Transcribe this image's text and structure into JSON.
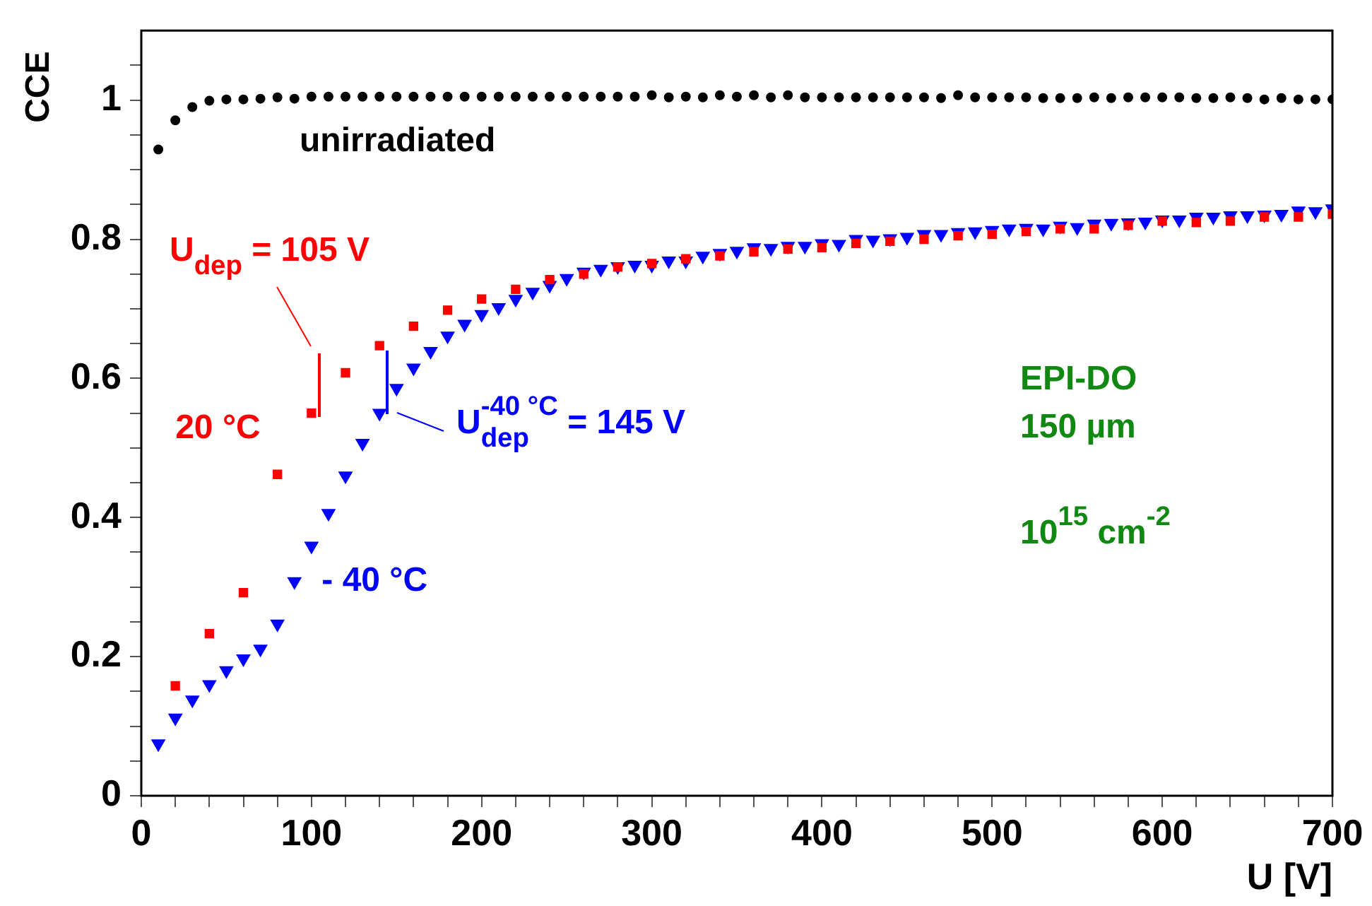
{
  "chart_data": {
    "type": "scatter",
    "xlabel": "U [V]",
    "ylabel": "CCE",
    "xlim": [
      0,
      700
    ],
    "ylim": [
      0,
      1.1
    ],
    "xticks": [
      0,
      {
        "value": 20,
        "label": null
      },
      {
        "value": 40,
        "label": null
      },
      {
        "value": 60,
        "label": null
      },
      {
        "value": 80,
        "label": null
      },
      100,
      {
        "value": 120,
        "label": null
      },
      {
        "value": 140,
        "label": null
      },
      {
        "value": 160,
        "label": null
      },
      {
        "value": 180,
        "label": null
      },
      200,
      {
        "value": 220,
        "label": null
      },
      {
        "value": 240,
        "label": null
      },
      {
        "value": 260,
        "label": null
      },
      {
        "value": 280,
        "label": null
      },
      300,
      {
        "value": 320,
        "label": null
      },
      {
        "value": 340,
        "label": null
      },
      {
        "value": 360,
        "label": null
      },
      {
        "value": 380,
        "label": null
      },
      400,
      {
        "value": 420,
        "label": null
      },
      {
        "value": 440,
        "label": null
      },
      {
        "value": 460,
        "label": null
      },
      {
        "value": 480,
        "label": null
      },
      500,
      {
        "value": 520,
        "label": null
      },
      {
        "value": 540,
        "label": null
      },
      {
        "value": 560,
        "label": null
      },
      {
        "value": 580,
        "label": null
      },
      600,
      {
        "value": 620,
        "label": null
      },
      {
        "value": 640,
        "label": null
      },
      {
        "value": 660,
        "label": null
      },
      {
        "value": 680,
        "label": null
      },
      700
    ],
    "yticks": [
      0,
      {
        "value": 0.05,
        "label": null
      },
      {
        "value": 0.1,
        "label": null
      },
      {
        "value": 0.15,
        "label": null
      },
      0.2,
      {
        "value": 0.25,
        "label": null
      },
      {
        "value": 0.3,
        "label": null
      },
      {
        "value": 0.35,
        "label": null
      },
      0.4,
      {
        "value": 0.45,
        "label": null
      },
      {
        "value": 0.5,
        "label": null
      },
      {
        "value": 0.55,
        "label": null
      },
      0.6,
      {
        "value": 0.65,
        "label": null
      },
      {
        "value": 0.7,
        "label": null
      },
      {
        "value": 0.75,
        "label": null
      },
      0.8,
      {
        "value": 0.85,
        "label": null
      },
      {
        "value": 0.9,
        "label": null
      },
      {
        "value": 0.95,
        "label": null
      },
      1,
      {
        "value": 1.05,
        "label": null
      }
    ],
    "grid": false,
    "legend": false,
    "series": [
      {
        "name": "20 °C",
        "color": "#ff0000",
        "marker": "square",
        "x": [
          20,
          40,
          60,
          80,
          100,
          120,
          140,
          160,
          180,
          200,
          220,
          240,
          260,
          280,
          300,
          320,
          340,
          360,
          380,
          400,
          420,
          440,
          460,
          480,
          500,
          520,
          540,
          560,
          580,
          600,
          620,
          640,
          660,
          680,
          700
        ],
        "values": [
          0.158,
          0.233,
          0.292,
          0.462,
          0.55,
          0.608,
          0.647,
          0.675,
          0.698,
          0.714,
          0.728,
          0.742,
          0.75,
          0.76,
          0.765,
          0.772,
          0.776,
          0.782,
          0.786,
          0.788,
          0.794,
          0.797,
          0.8,
          0.805,
          0.807,
          0.811,
          0.815,
          0.815,
          0.82,
          0.826,
          0.824,
          0.826,
          0.832,
          0.832,
          0.836
        ]
      },
      {
        "name": "- 40 °C",
        "color": "#0000ff",
        "marker": "triangle",
        "x": [
          10,
          20,
          30,
          40,
          50,
          60,
          70,
          80,
          90,
          100,
          110,
          120,
          130,
          140,
          150,
          160,
          170,
          180,
          190,
          200,
          210,
          220,
          230,
          240,
          250,
          260,
          270,
          280,
          290,
          300,
          310,
          320,
          330,
          340,
          350,
          360,
          370,
          380,
          390,
          400,
          410,
          420,
          430,
          440,
          450,
          460,
          470,
          480,
          490,
          500,
          510,
          520,
          530,
          540,
          550,
          560,
          570,
          580,
          590,
          600,
          610,
          620,
          630,
          640,
          650,
          660,
          670,
          680,
          690,
          700
        ],
        "values": [
          0.075,
          0.112,
          0.138,
          0.16,
          0.18,
          0.197,
          0.211,
          0.247,
          0.308,
          0.359,
          0.406,
          0.46,
          0.507,
          0.55,
          0.586,
          0.615,
          0.639,
          0.661,
          0.678,
          0.692,
          0.702,
          0.714,
          0.724,
          0.734,
          0.744,
          0.753,
          0.757,
          0.761,
          0.763,
          0.763,
          0.769,
          0.769,
          0.776,
          0.78,
          0.783,
          0.788,
          0.787,
          0.79,
          0.79,
          0.794,
          0.793,
          0.8,
          0.799,
          0.801,
          0.803,
          0.807,
          0.807,
          0.81,
          0.811,
          0.813,
          0.815,
          0.816,
          0.815,
          0.819,
          0.817,
          0.822,
          0.823,
          0.824,
          0.825,
          0.828,
          0.828,
          0.832,
          0.832,
          0.834,
          0.834,
          0.835,
          0.836,
          0.841,
          0.84,
          0.844
        ]
      },
      {
        "name": "unirradiated",
        "color": "#000000",
        "marker": "circle",
        "x": [
          10,
          20,
          30,
          40,
          50,
          60,
          70,
          80,
          90,
          100,
          110,
          120,
          130,
          140,
          150,
          160,
          170,
          180,
          190,
          200,
          210,
          220,
          230,
          240,
          250,
          260,
          270,
          280,
          290,
          300,
          310,
          320,
          330,
          340,
          350,
          360,
          370,
          380,
          390,
          400,
          410,
          420,
          430,
          440,
          450,
          460,
          470,
          480,
          490,
          500,
          510,
          520,
          530,
          540,
          550,
          560,
          570,
          580,
          590,
          600,
          610,
          620,
          630,
          640,
          650,
          660,
          670,
          680,
          690,
          700
        ],
        "values": [
          0.929,
          0.971,
          0.99,
          0.999,
          1.001,
          1.001,
          1.002,
          1.004,
          1.002,
          1.005,
          1.005,
          1.005,
          1.005,
          1.005,
          1.005,
          1.005,
          1.005,
          1.005,
          1.005,
          1.005,
          1.005,
          1.005,
          1.005,
          1.005,
          1.005,
          1.005,
          1.005,
          1.005,
          1.005,
          1.007,
          1.004,
          1.005,
          1.004,
          1.007,
          1.005,
          1.007,
          1.004,
          1.007,
          1.004,
          1.004,
          1.004,
          1.004,
          1.004,
          1.004,
          1.004,
          1.004,
          1.003,
          1.007,
          1.004,
          1.004,
          1.004,
          1.004,
          1.003,
          1.003,
          1.003,
          1.004,
          1.003,
          1.004,
          1.004,
          1.004,
          1.004,
          1.003,
          1.003,
          1.004,
          1.003,
          1.001,
          1.003,
          1.001,
          1.001,
          1.001
        ]
      }
    ],
    "annotations": [
      "U$_{dep}$ = 105 V",
      "U$_{dep}$$^{-40 °C}$ = 145 V",
      "EPI-DO",
      "150 µm",
      "10$^{15}$ cm$^{-2}$"
    ]
  }
}
